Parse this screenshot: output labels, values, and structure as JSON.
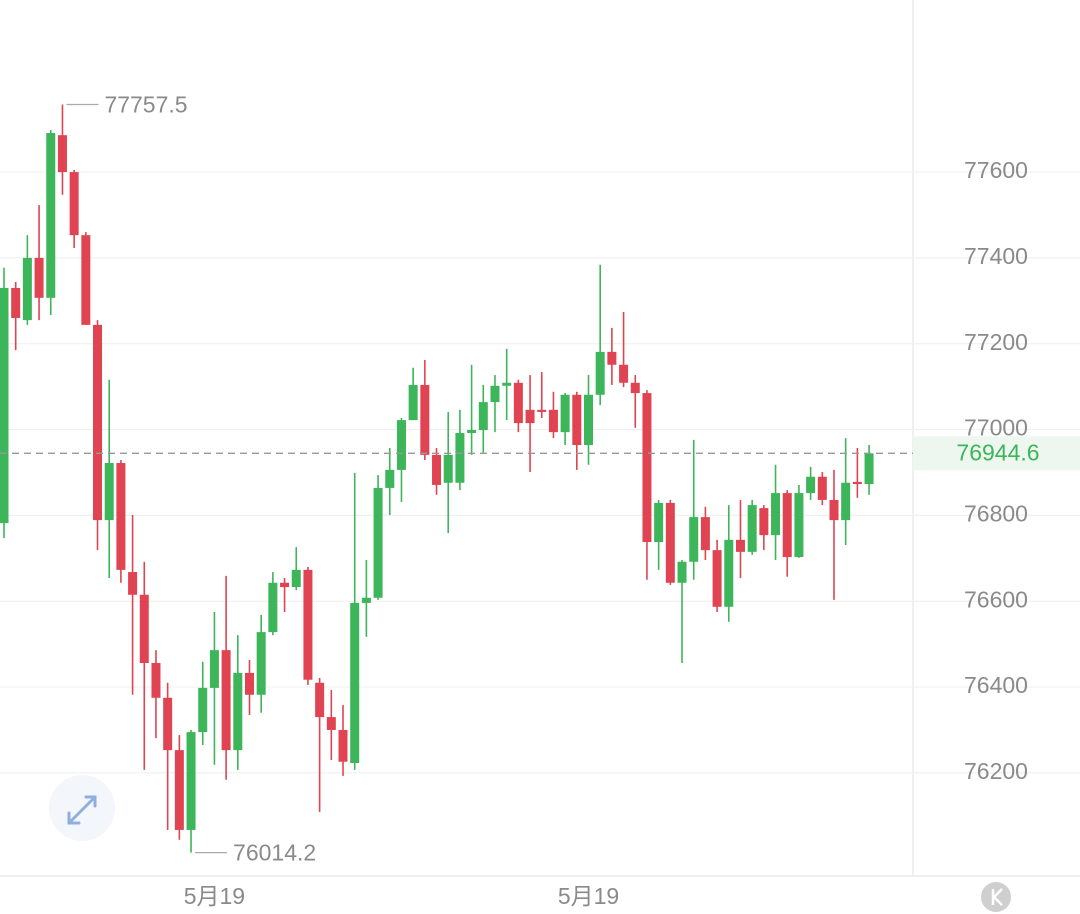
{
  "chart_data": {
    "type": "candlestick",
    "categories": [
      null,
      null,
      null,
      null,
      null,
      null,
      null,
      null,
      null,
      null,
      null,
      null,
      null,
      null,
      null,
      null,
      null,
      null,
      "5月19",
      null,
      null,
      null,
      null,
      null,
      null,
      null,
      null,
      null,
      null,
      null,
      null,
      null,
      null,
      null,
      null,
      null,
      null,
      null,
      null,
      null,
      null,
      null,
      null,
      null,
      null,
      null,
      null,
      null,
      null,
      null,
      "5月19",
      null,
      null,
      null,
      null,
      null,
      null,
      null,
      null,
      null,
      null,
      null,
      null,
      null,
      null,
      null,
      null,
      null,
      null,
      null,
      null,
      null,
      null,
      null,
      null
    ],
    "open": [
      76782,
      77330,
      77255,
      77400,
      77307,
      77686,
      77600,
      77453,
      77244,
      76789,
      76922,
      76668,
      76615,
      76456,
      76375,
      76253,
      76067,
      76295,
      76398,
      76486,
      76253,
      76433,
      76382,
      76528,
      76643,
      76633,
      76673,
      76410,
      76330,
      76300,
      76223,
      76596,
      76608,
      76864,
      76906,
      77022,
      77104,
      76941,
      76876,
      76876,
      76992,
      76999,
      77064,
      77102,
      77109,
      77046,
      77046,
      77046,
      76994,
      77081,
      76964,
      77081,
      77181,
      77151,
      77109,
      77085,
      76738,
      76829,
      76643,
      76692,
      76796,
      76719,
      76587,
      76743,
      76715,
      76817,
      76754,
      76852,
      76703,
      76852,
      76890,
      76836,
      76789,
      76878,
      76873
    ],
    "high": [
      77377,
      77344,
      77453,
      77523,
      77698,
      77757.5,
      77605,
      77460,
      77255,
      77116,
      76929,
      76801,
      76692,
      76486,
      76410,
      76288,
      76300,
      76459,
      76575,
      76659,
      76521,
      76463,
      76568,
      76668,
      76654,
      76726,
      76680,
      76421,
      76393,
      76358,
      76899,
      76696,
      76894,
      76957,
      77027,
      77144,
      77162,
      76957,
      77041,
      77046,
      77151,
      77104,
      77127,
      77188,
      77116,
      77127,
      77134,
      77088,
      77085,
      77088,
      77127,
      77384,
      77237,
      77274,
      77127,
      77092,
      76836,
      76836,
      76696,
      76976,
      76820,
      76743,
      76824,
      76836,
      76836,
      76824,
      76918,
      76859,
      76871,
      76913,
      76901,
      76906,
      76980,
      76957,
      76964
    ],
    "low": [
      76747,
      77185,
      77244,
      77255,
      77267,
      77547,
      77423,
      77244,
      76719,
      76654,
      76643,
      76382,
      76207,
      76281,
      76067,
      76044,
      76014.2,
      76265,
      76219,
      76184,
      76207,
      76335,
      76340,
      76521,
      76575,
      76626,
      76405,
      76109,
      76230,
      76193,
      76207,
      76517,
      76603,
      76801,
      76831,
      77022,
      76929,
      76848,
      76759,
      76859,
      76941,
      76946,
      76994,
      77022,
      76994,
      76901,
      77027,
      76980,
      76964,
      76906,
      76918,
      77057,
      77104,
      77099,
      77004,
      76650,
      76673,
      76638,
      76456,
      76650,
      76696,
      76575,
      76552,
      76654,
      76708,
      76719,
      76696,
      76657,
      76701,
      76836,
      76824,
      76603,
      76731,
      76841,
      76848
    ],
    "close": [
      77330,
      77260,
      77400,
      77307,
      77691,
      77600,
      77453,
      77244,
      76789,
      76922,
      76673,
      76615,
      76456,
      76375,
      76253,
      76067,
      76295,
      76398,
      76486,
      76253,
      76433,
      76382,
      76528,
      76643,
      76633,
      76673,
      76417,
      76330,
      76300,
      76226,
      76596,
      76608,
      76864,
      76906,
      77022,
      77104,
      76941,
      76871,
      76941,
      76992,
      76999,
      77064,
      77102,
      77109,
      77015,
      77015,
      77041,
      76994,
      77081,
      76964,
      77081,
      77181,
      77151,
      77109,
      77085,
      76738,
      76829,
      76643,
      76692,
      76796,
      76719,
      76587,
      76743,
      76715,
      76824,
      76754,
      76852,
      76703,
      76852,
      76890,
      76836,
      76789,
      76876,
      76873,
      76944.6
    ],
    "up_color": "#3db55a",
    "down_color": "#e04452",
    "ylim": [
      75962,
      78001
    ],
    "yticks": [
      76200,
      76400,
      76600,
      76800,
      77000,
      77200,
      77400,
      77600
    ],
    "grid": true,
    "high_marker": 77757.5,
    "low_marker": 76014.2,
    "last_price": 76944.6
  }
}
